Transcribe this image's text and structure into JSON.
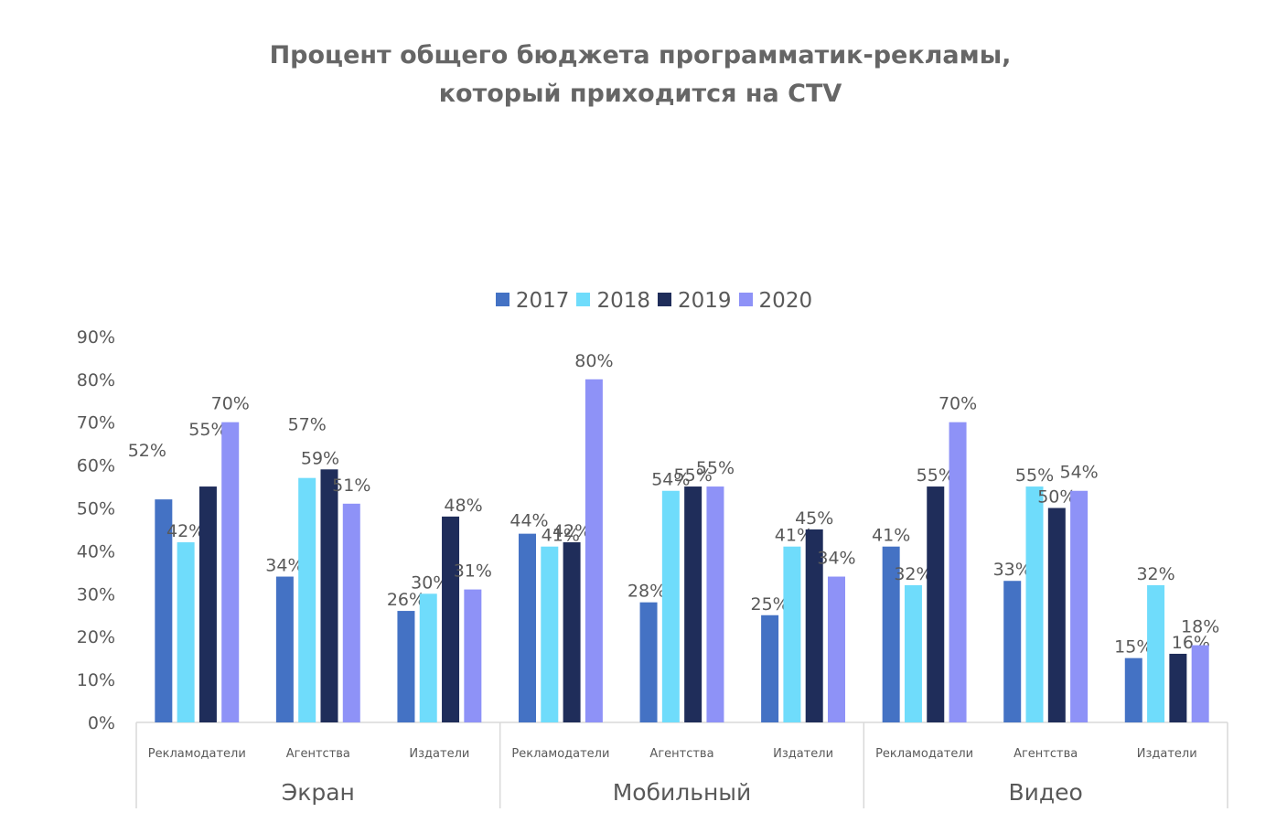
{
  "title_line1": "Процент общего бюджета программатик-рекламы,",
  "title_line2": "который приходится на CTV",
  "colors": {
    "2017": "#4472c4",
    "2018": "#6fdcfb",
    "2019": "#1f2d5a",
    "2020": "#8e92f7",
    "axis": "#d9d9d9",
    "text": "#595959",
    "leader": "#a6a6a6"
  },
  "chart_data": {
    "type": "bar",
    "title": "Процент общего бюджета программатик-рекламы, который приходится на CTV",
    "ylim": [
      0,
      90
    ],
    "yticks": [
      "0%",
      "10%",
      "20%",
      "30%",
      "40%",
      "50%",
      "60%",
      "70%",
      "80%",
      "90%"
    ],
    "grid": false,
    "legend_position": "top",
    "groups": [
      "Экран",
      "Мобильный",
      "Видео"
    ],
    "categories": [
      "Рекламодатели",
      "Агентства",
      "Издатели",
      "Рекламодатели",
      "Агентства",
      "Издатели",
      "Рекламодатели",
      "Агентства",
      "Издатели"
    ],
    "series": [
      {
        "name": "2017",
        "values": [
          52,
          34,
          26,
          44,
          28,
          25,
          41,
          33,
          15
        ]
      },
      {
        "name": "2018",
        "values": [
          42,
          57,
          30,
          41,
          54,
          41,
          32,
          55,
          32
        ]
      },
      {
        "name": "2019",
        "values": [
          55,
          59,
          48,
          42,
          55,
          45,
          55,
          50,
          16
        ]
      },
      {
        "name": "2020",
        "values": [
          70,
          51,
          31,
          80,
          55,
          34,
          70,
          54,
          18
        ]
      }
    ]
  }
}
